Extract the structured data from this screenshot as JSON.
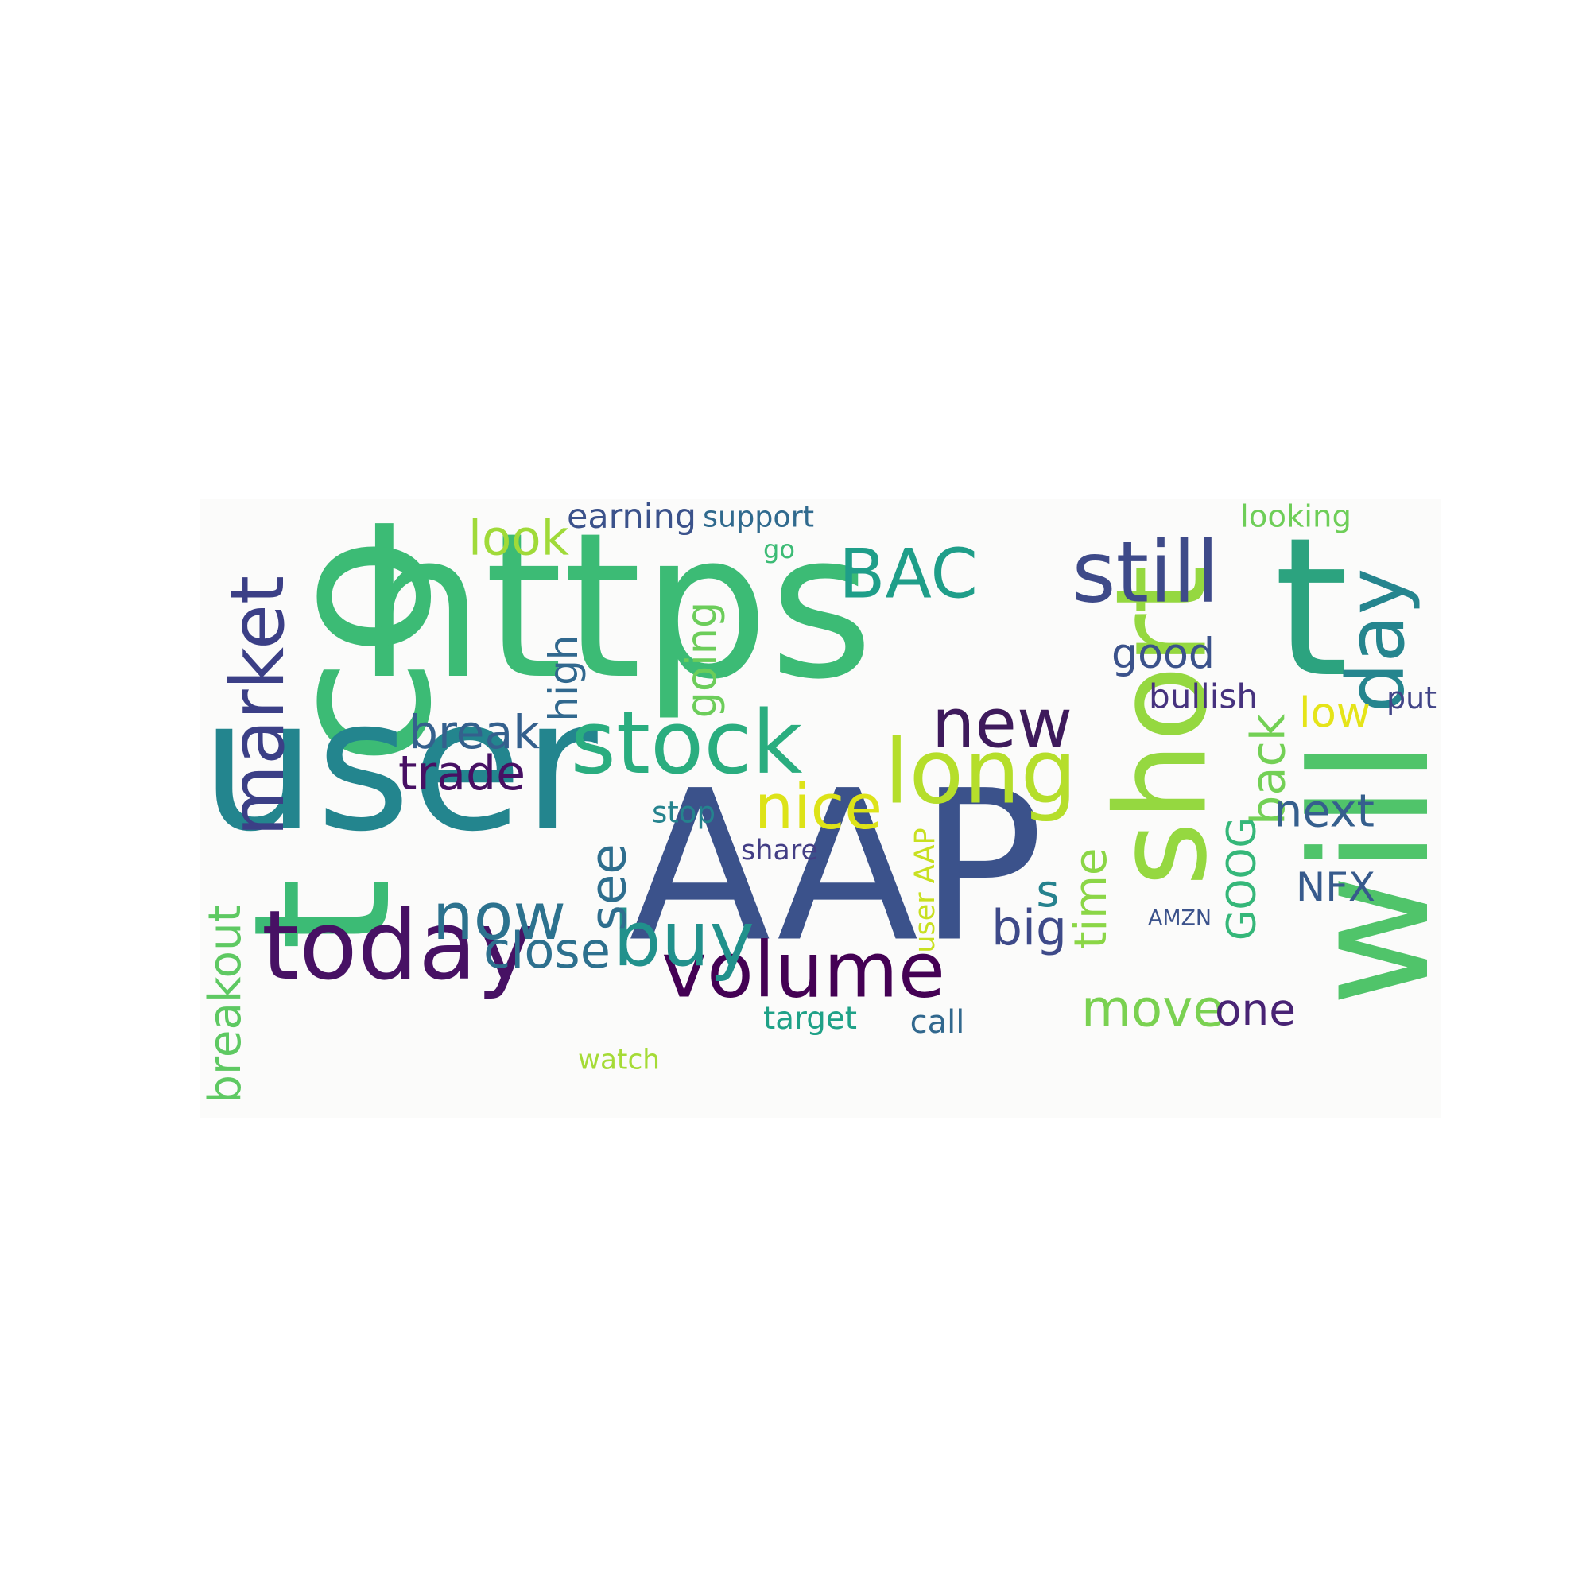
{
  "wordcloud": {
    "background": "#fbfbfa",
    "words": [
      {
        "text": "https",
        "color": "#3cbb75"
      },
      {
        "text": "co",
        "color": "#3cbb75"
      },
      {
        "text": "t",
        "color": "#3cbb75"
      },
      {
        "text": "t",
        "color": "#2ca37f"
      },
      {
        "text": "user",
        "color": "#23858e"
      },
      {
        "text": "AAP",
        "color": "#3b528b"
      },
      {
        "text": "short",
        "color": "#95d840"
      },
      {
        "text": "will",
        "color": "#50c46a"
      },
      {
        "text": "today",
        "color": "#471164"
      },
      {
        "text": "stock",
        "color": "#2aad7f"
      },
      {
        "text": "volume",
        "color": "#440154"
      },
      {
        "text": "long",
        "color": "#b5de2b"
      },
      {
        "text": "now",
        "color": "#2c728e"
      },
      {
        "text": "buy",
        "color": "#21918c"
      },
      {
        "text": "new",
        "color": "#3e1a5c"
      },
      {
        "text": "still",
        "color": "#3e4a89"
      },
      {
        "text": "BAC",
        "color": "#1f9e89"
      },
      {
        "text": "market",
        "color": "#3b3f86"
      },
      {
        "text": "day",
        "color": "#25858e"
      },
      {
        "text": "back",
        "color": "#73d055"
      },
      {
        "text": "GOOG",
        "color": "#35b779"
      },
      {
        "text": "nice",
        "color": "#dde318"
      },
      {
        "text": "close",
        "color": "#2d708e"
      },
      {
        "text": "good",
        "color": "#3b528b"
      },
      {
        "text": "move",
        "color": "#7ad151"
      },
      {
        "text": "one",
        "color": "#482374"
      },
      {
        "text": "see",
        "color": "#2e6e8e"
      },
      {
        "text": "break",
        "color": "#34608d"
      },
      {
        "text": "high",
        "color": "#31688e"
      },
      {
        "text": "going",
        "color": "#6ccd5a"
      },
      {
        "text": "look",
        "color": "#a0da39"
      },
      {
        "text": "trade",
        "color": "#471063"
      },
      {
        "text": "time",
        "color": "#8bd646"
      },
      {
        "text": "breakout",
        "color": "#5ec962"
      },
      {
        "text": "next",
        "color": "#355f8d"
      },
      {
        "text": "NFX",
        "color": "#375a8c"
      },
      {
        "text": "big",
        "color": "#3e4a89"
      },
      {
        "text": "s",
        "color": "#26828e"
      },
      {
        "text": "low",
        "color": "#e5e419"
      },
      {
        "text": "earning",
        "color": "#3b528b"
      },
      {
        "text": "support",
        "color": "#306a8e"
      },
      {
        "text": "looking",
        "color": "#6ece58"
      },
      {
        "text": "go",
        "color": "#3cbb75"
      },
      {
        "text": "bullish",
        "color": "#46327e"
      },
      {
        "text": "put",
        "color": "#414487"
      },
      {
        "text": "stop",
        "color": "#25838e"
      },
      {
        "text": "share",
        "color": "#433e85"
      },
      {
        "text": "user AAP",
        "color": "#c8e020"
      },
      {
        "text": "AMZN",
        "color": "#3b528b"
      },
      {
        "text": "target",
        "color": "#1fa187"
      },
      {
        "text": "call",
        "color": "#31688e"
      },
      {
        "text": "watch",
        "color": "#a5db36"
      }
    ]
  }
}
